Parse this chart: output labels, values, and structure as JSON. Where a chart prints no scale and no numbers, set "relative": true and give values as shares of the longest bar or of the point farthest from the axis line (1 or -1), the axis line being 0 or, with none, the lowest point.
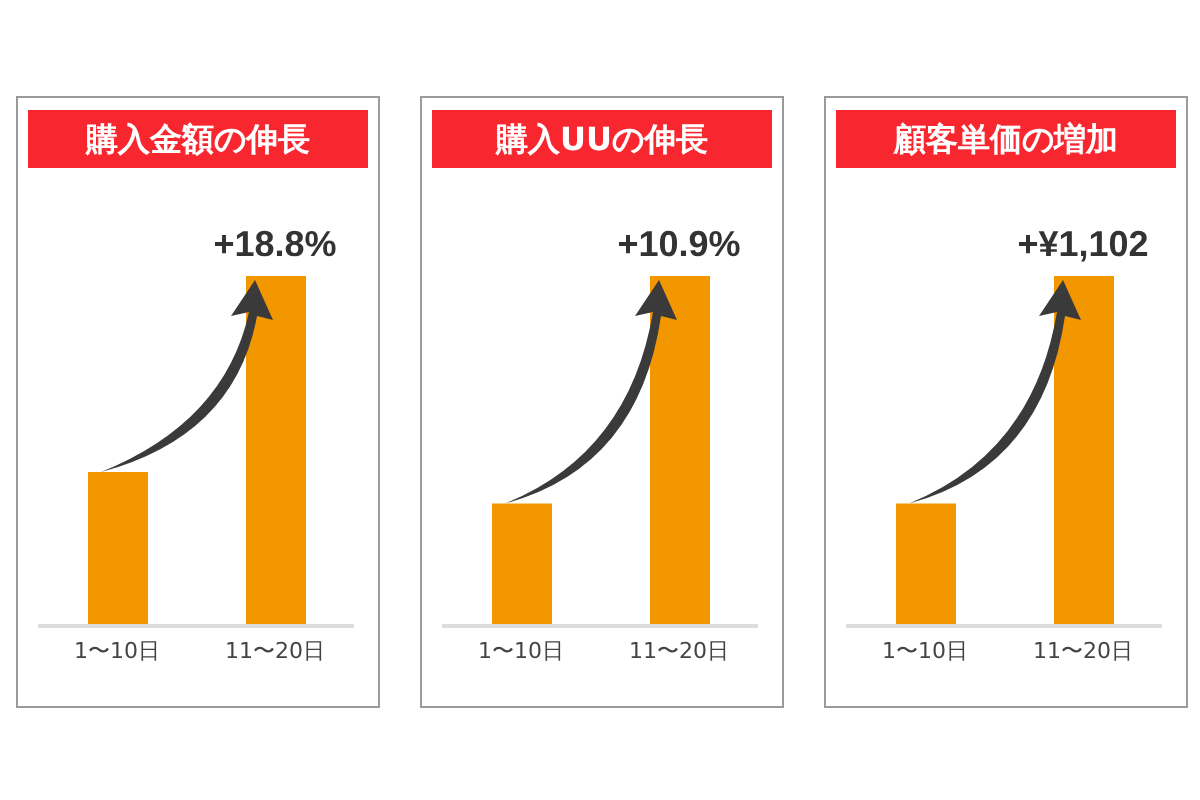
{
  "chart_data": [
    {
      "type": "bar",
      "title": "購入金額の伸長",
      "categories": [
        "1〜10日",
        "11〜20日"
      ],
      "values": [
        0.44,
        1
      ],
      "color": "#f39700",
      "relative": true,
      "grid": false,
      "legend": false,
      "annotations": [
        {
          "text": "+18.8%",
          "x": "11〜20日",
          "y": 1
        }
      ]
    },
    {
      "type": "bar",
      "title": "購入UUの伸長",
      "categories": [
        "1〜10日",
        "11〜20日"
      ],
      "values": [
        0.35,
        1
      ],
      "color": "#f39700",
      "relative": true,
      "grid": false,
      "legend": false,
      "annotations": [
        {
          "text": "+10.9%",
          "x": "11〜20日",
          "y": 1
        }
      ]
    },
    {
      "type": "bar",
      "title": "顧客単価の増加",
      "categories": [
        "1〜10日",
        "11〜20日"
      ],
      "values": [
        0.35,
        1
      ],
      "color": "#f39700",
      "relative": true,
      "grid": false,
      "legend": false,
      "annotations": [
        {
          "text": "+¥1,102",
          "x": "11〜20日",
          "y": 1
        }
      ]
    }
  ]
}
